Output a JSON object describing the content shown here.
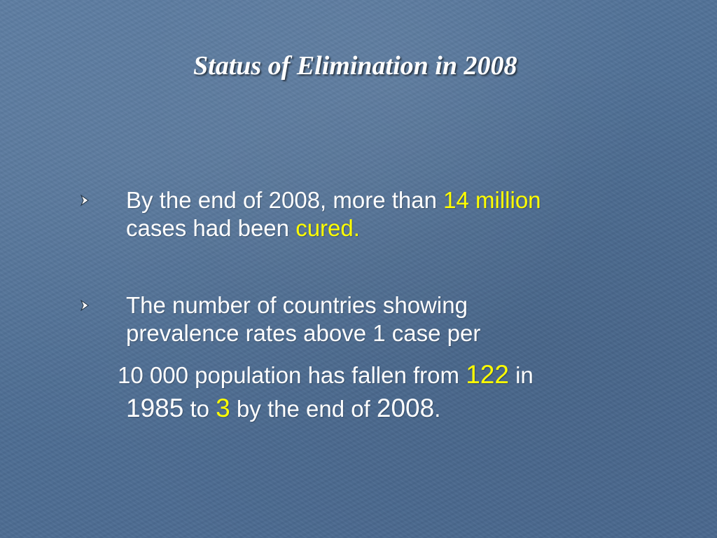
{
  "slide": {
    "title": "Status of Elimination in 2008",
    "bullet1": {
      "line1_a": "By the end of 2008, more than ",
      "line1_hl": "14 million",
      "line2_a": "cases had been ",
      "line2_hl": "cured."
    },
    "bullet2": {
      "line1": "The number of countries showing",
      "line2": "prevalence rates above 1 case per",
      "line3_a": "10 000 population has fallen from ",
      "line3_num": "122",
      "line3_b": " in",
      "line4_year1": "1985",
      "line4_to": " to ",
      "line4_num": "3",
      "line4_b": " by the end of ",
      "line4_year2": "2008",
      "line4_end": "."
    },
    "colors": {
      "background": "#4f6f95",
      "text": "#ffffff",
      "highlight": "#ffff00"
    },
    "icons": {
      "bullet": "arrowhead-bullet-icon"
    }
  }
}
